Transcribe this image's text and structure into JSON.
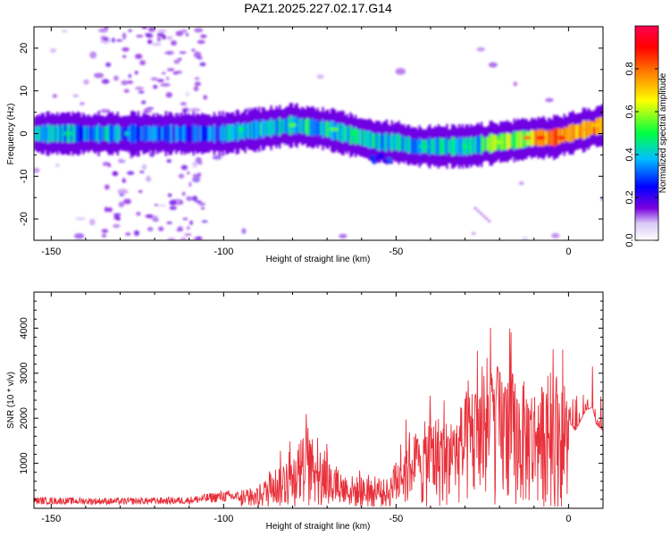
{
  "title": "PAZ1.2025.227.02.17.G14",
  "chart_data": [
    {
      "type": "heatmap",
      "xlabel": "Height of straight line (km)",
      "ylabel": "Frequency (Hz)",
      "xlim": [
        -155,
        10
      ],
      "ylim": [
        -25,
        25
      ],
      "x_ticks": [
        -150,
        -100,
        -50,
        0
      ],
      "y_ticks": [
        -20,
        -10,
        0,
        10,
        20
      ],
      "colorbar": {
        "label": "Normalized spectral amplitude",
        "range": [
          0,
          1
        ],
        "ticks": [
          0.0,
          0.2,
          0.4,
          0.6,
          0.8
        ],
        "tick_labels": [
          "0.0",
          "0.2",
          "0.4",
          "0.6",
          "0.8"
        ],
        "colors": [
          "#ffffff",
          "#7a00e0",
          "#0000ff",
          "#00c0ff",
          "#00ff40",
          "#ffff00",
          "#ff8000",
          "#ff0000",
          "#ff0050"
        ]
      },
      "ridge": {
        "x": [
          -155,
          -140,
          -120,
          -100,
          -90,
          -80,
          -70,
          -60,
          -55,
          -50,
          -45,
          -40,
          -30,
          -20,
          -10,
          -5,
          0,
          5,
          10
        ],
        "y": [
          0,
          0,
          0,
          0,
          1,
          2,
          1,
          -1,
          -2,
          -2,
          -3,
          -3,
          -3,
          -2,
          -1,
          -1,
          0,
          1,
          2
        ]
      }
    },
    {
      "type": "line",
      "xlabel": "Height of straight line (km)",
      "ylabel": "SNR (10 * v/v)",
      "xlim": [
        -155,
        10
      ],
      "ylim": [
        0,
        4800
      ],
      "x_ticks": [
        -150,
        -100,
        -50,
        0
      ],
      "y_ticks": [
        1000,
        2000,
        3000,
        4000
      ],
      "color": "#e8303a",
      "envelope": {
        "x": [
          -155,
          -130,
          -110,
          -100,
          -95,
          -90,
          -85,
          -80,
          -76,
          -72,
          -68,
          -64,
          -60,
          -56,
          -52,
          -50,
          -46,
          -43,
          -40,
          -35,
          -30,
          -25,
          -22,
          -20,
          -17,
          -15,
          -12,
          -8,
          -5,
          -2,
          0,
          2,
          5,
          7,
          8,
          10
        ],
        "y": [
          250,
          230,
          260,
          400,
          380,
          520,
          1100,
          1500,
          2000,
          1600,
          1100,
          900,
          800,
          700,
          800,
          1300,
          2100,
          2000,
          2600,
          2300,
          2900,
          3500,
          3900,
          3700,
          3800,
          3400,
          3300,
          3200,
          3700,
          3500,
          2600,
          2300,
          2900,
          3000,
          2500,
          2300
        ]
      }
    }
  ]
}
